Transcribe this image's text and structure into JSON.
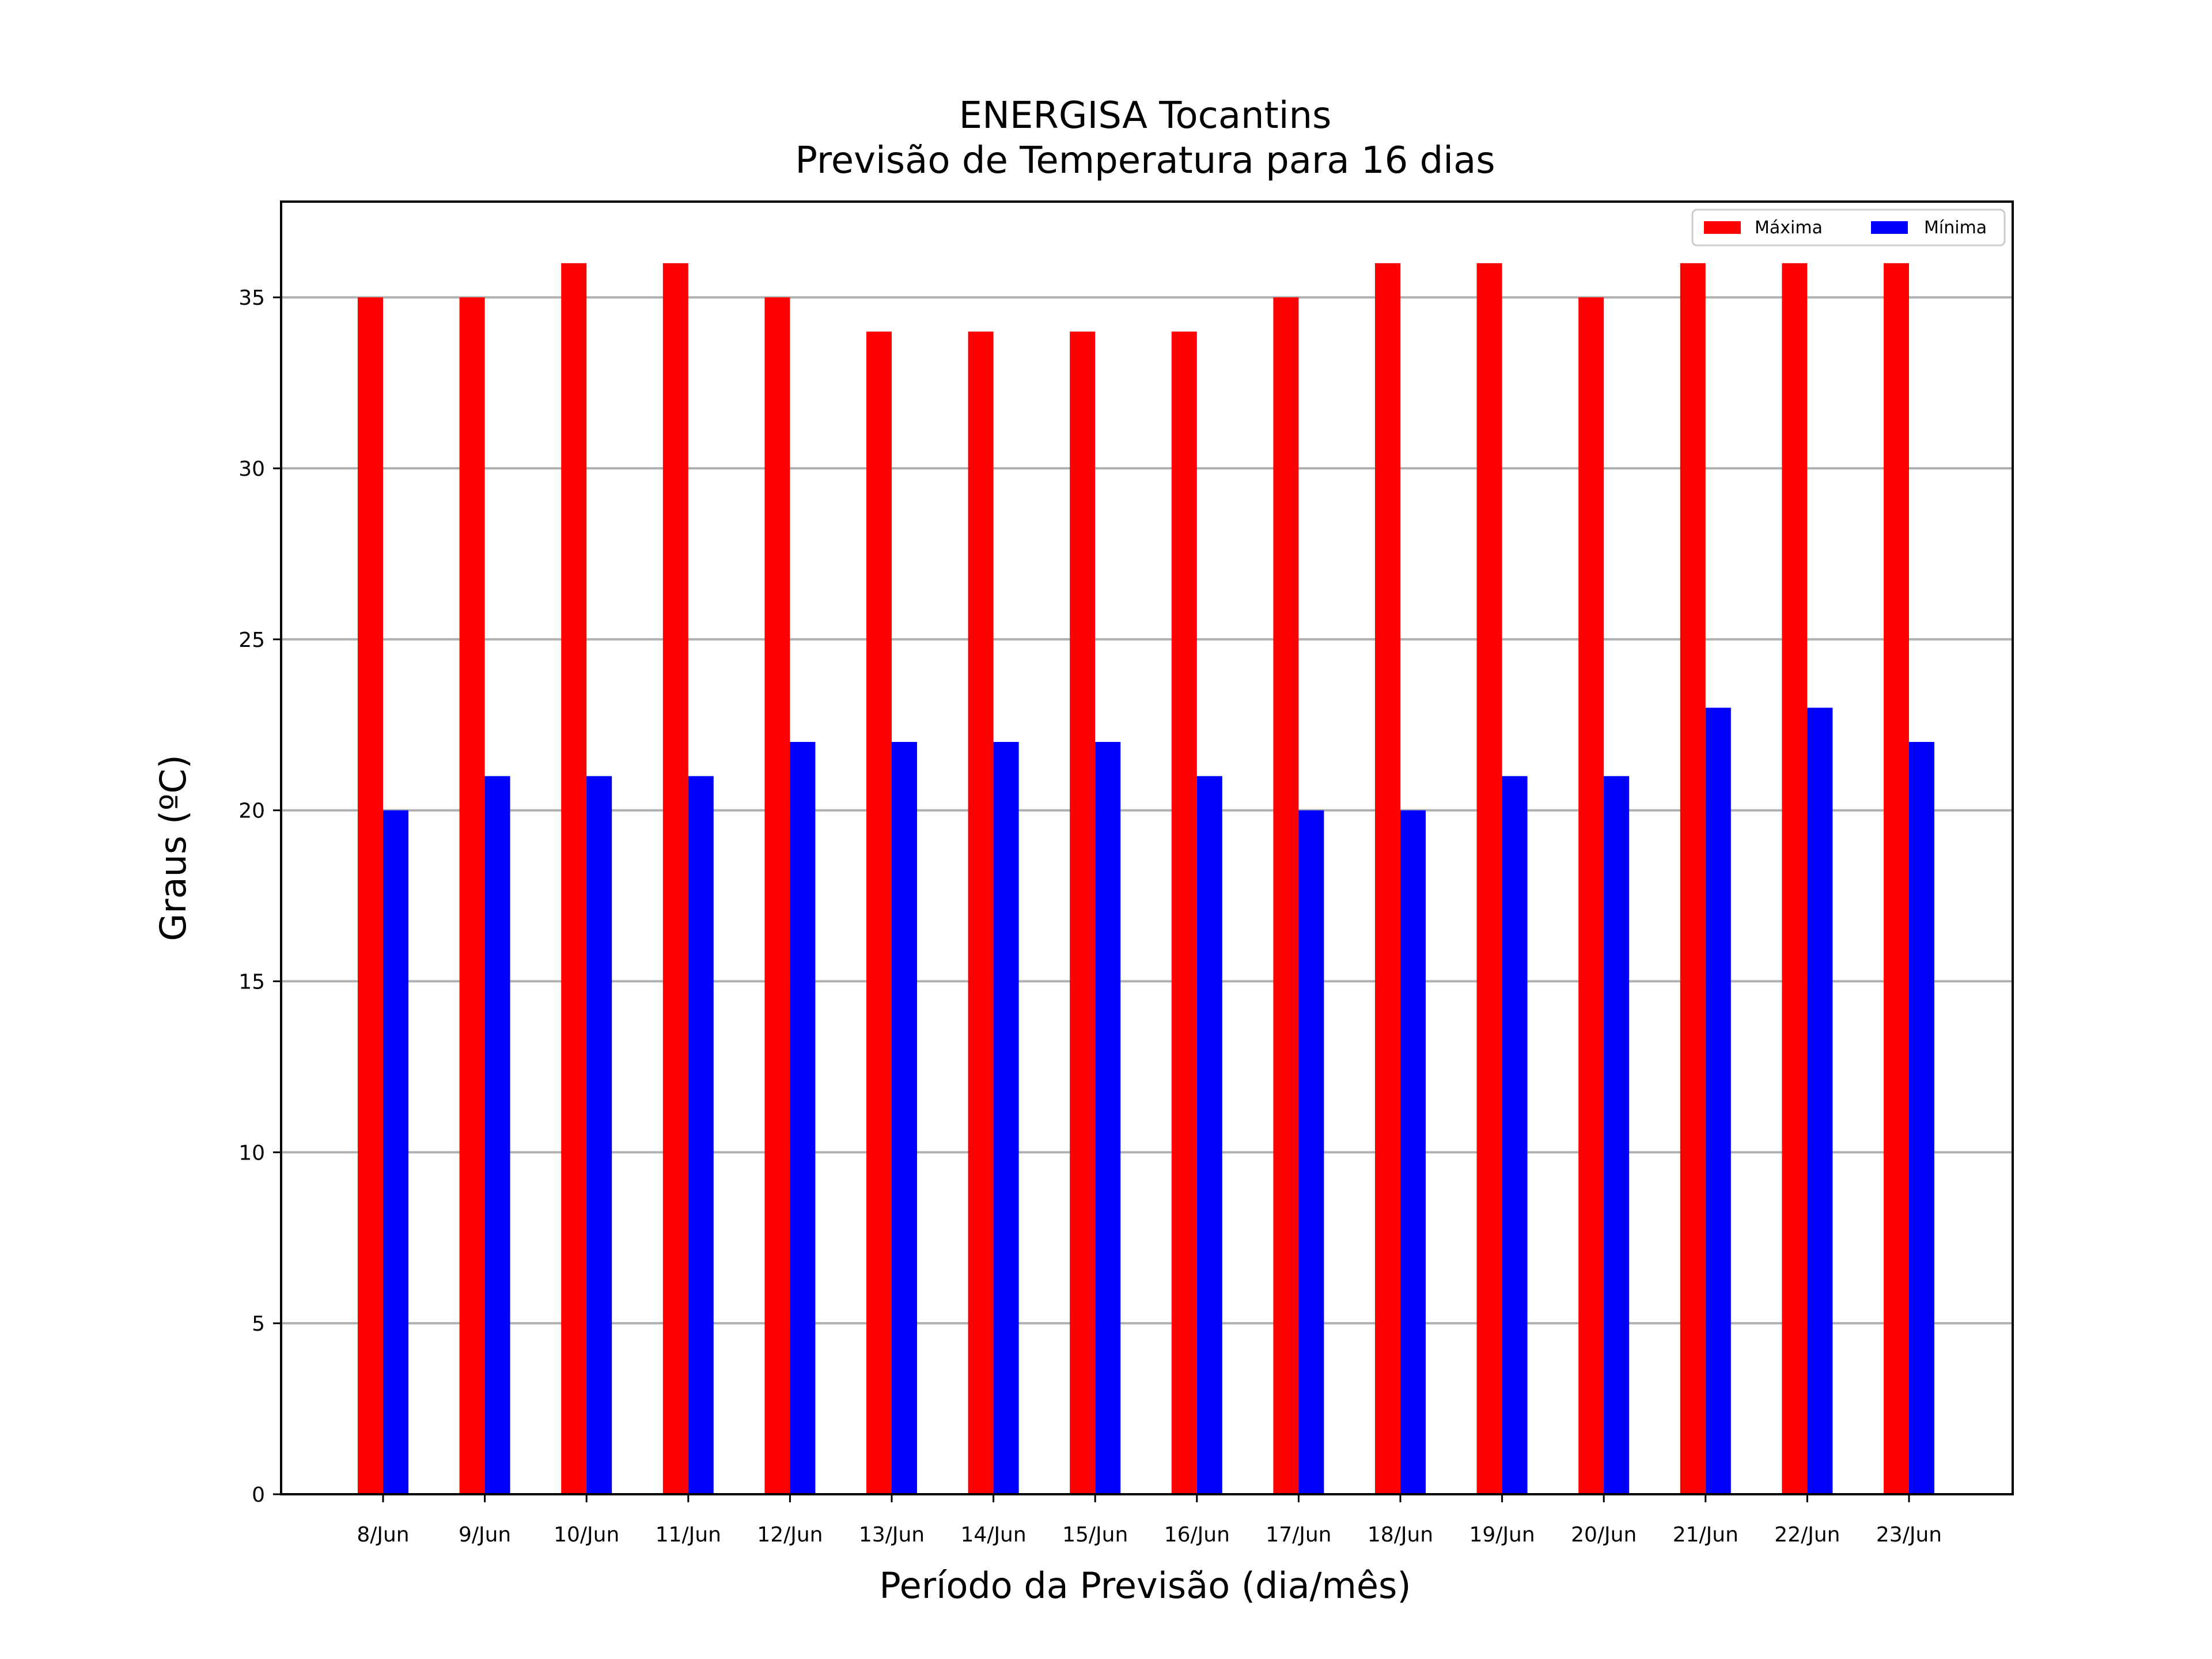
{
  "chart_data": {
    "type": "bar",
    "title": "ENERGISA Tocantins",
    "subtitle": "Previsão de Temperatura para 16 dias",
    "xlabel": "Período da Previsão (dia/mês)",
    "ylabel": "Graus (ºC)",
    "categories": [
      "8/Jun",
      "9/Jun",
      "10/Jun",
      "11/Jun",
      "12/Jun",
      "13/Jun",
      "14/Jun",
      "15/Jun",
      "16/Jun",
      "17/Jun",
      "18/Jun",
      "19/Jun",
      "20/Jun",
      "21/Jun",
      "22/Jun",
      "23/Jun"
    ],
    "series": [
      {
        "name": "Máxima",
        "color": "#ff0000",
        "values": [
          35,
          35,
          36,
          36,
          35,
          34,
          34,
          34,
          34,
          35,
          36,
          36,
          35,
          36,
          36,
          36
        ]
      },
      {
        "name": "Mínima",
        "color": "#0000ff",
        "values": [
          20,
          21,
          21,
          21,
          22,
          22,
          22,
          22,
          21,
          20,
          20,
          21,
          21,
          23,
          23,
          22
        ]
      }
    ],
    "ylim": [
      0,
      37.8
    ],
    "yticks": [
      0,
      5,
      10,
      15,
      20,
      25,
      30,
      35
    ],
    "grid": "horizontal",
    "grid_color": "#b0b0b0",
    "legend_position": "top-right"
  }
}
